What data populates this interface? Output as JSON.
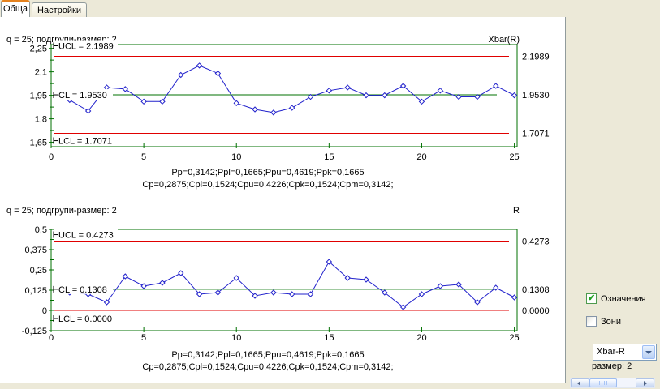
{
  "tabs": [
    {
      "label": "Обща",
      "active": true
    },
    {
      "label": "Настройки",
      "active": false
    }
  ],
  "colors": {
    "background": "#ECE9D8",
    "panel": "#FFFFFF",
    "plot_border": "#007000",
    "center_line": "#007000",
    "control_limit": "#E00000",
    "series": "#2222CC",
    "tab_accent": "#E5821E",
    "check": "#21A121"
  },
  "controls": {
    "legend_checkbox": {
      "label": "Означения",
      "checked": true
    },
    "zones_checkbox": {
      "label": "Зони",
      "checked": false
    },
    "chart_type_dropdown": {
      "value": "Xbar-R"
    },
    "size_label": "размер: 2"
  },
  "chart_data": [
    {
      "type": "line",
      "name": "xbar-chart",
      "header_left": "q = 25; подгрупи-размер: 2",
      "title": "Xbar(R)",
      "x": [
        1,
        2,
        3,
        4,
        5,
        6,
        7,
        8,
        9,
        10,
        11,
        12,
        13,
        14,
        15,
        16,
        17,
        18,
        19,
        20,
        21,
        22,
        23,
        24,
        25
      ],
      "values": [
        1.92,
        1.85,
        2.0,
        1.99,
        1.91,
        1.91,
        2.08,
        2.14,
        2.09,
        1.9,
        1.86,
        1.84,
        1.87,
        1.94,
        1.98,
        2.0,
        1.95,
        1.95,
        2.01,
        1.91,
        1.98,
        1.94,
        1.94,
        2.01,
        1.95
      ],
      "ucl": 2.1989,
      "cl": 1.953,
      "lcl": 1.7071,
      "ucl_label": "UCL = 2.1989",
      "cl_label": "CL = 1.9530",
      "lcl_label": "LCL = 1.7071",
      "right_labels": [
        "2.1989",
        "1.9530",
        "1.7071"
      ],
      "y_ticks": [
        {
          "v": 2.25,
          "label": "2,25"
        },
        {
          "v": 2.1,
          "label": "2,1"
        },
        {
          "v": 1.95,
          "label": "1,95"
        },
        {
          "v": 1.8,
          "label": "1,8"
        },
        {
          "v": 1.65,
          "label": "1,65"
        }
      ],
      "x_ticks": [
        {
          "v": 0,
          "label": "0"
        },
        {
          "v": 5,
          "label": "5"
        },
        {
          "v": 10,
          "label": "10"
        },
        {
          "v": 15,
          "label": "15"
        },
        {
          "v": 20,
          "label": "20"
        },
        {
          "v": 25,
          "label": "25"
        }
      ],
      "ylim": [
        1.622,
        2.274
      ],
      "xlim": [
        0,
        25.15
      ],
      "label_dy": {
        "ucl": -13,
        "cl": 0,
        "lcl": 9
      },
      "stats_line1": "Pp=0,3142;Ppl=0,1665;Ppu=0,4619;Ppk=0,1665",
      "stats_line2": "Cp=0,2875;Cpl=0,1524;Cpu=0,4226;Cpk=0,1524;Cpm=0,3142;"
    },
    {
      "type": "line",
      "name": "r-chart",
      "header_left": "q = 25; подгрупи-размер: 2",
      "title": "R",
      "x": [
        1,
        2,
        3,
        4,
        5,
        6,
        7,
        8,
        9,
        10,
        11,
        12,
        13,
        14,
        15,
        16,
        17,
        18,
        19,
        20,
        21,
        22,
        23,
        24,
        25
      ],
      "values": [
        0.11,
        0.1,
        0.05,
        0.21,
        0.15,
        0.17,
        0.23,
        0.1,
        0.11,
        0.2,
        0.09,
        0.11,
        0.1,
        0.1,
        0.3,
        0.2,
        0.19,
        0.11,
        0.02,
        0.1,
        0.15,
        0.16,
        0.05,
        0.14,
        0.08
      ],
      "ucl": 0.4273,
      "cl": 0.1308,
      "lcl": 0.0,
      "ucl_label": "UCL = 0.4273",
      "cl_label": "CL = 0.1308",
      "lcl_label": "LCL = 0.0000",
      "right_labels": [
        "0.4273",
        "0.1308",
        "0.0000"
      ],
      "y_ticks": [
        {
          "v": 0.5,
          "label": "0,5"
        },
        {
          "v": 0.375,
          "label": "0,375"
        },
        {
          "v": 0.25,
          "label": "0,25"
        },
        {
          "v": 0.125,
          "label": "0,125"
        },
        {
          "v": 0,
          "label": "0"
        },
        {
          "v": -0.125,
          "label": "-0,125"
        }
      ],
      "x_ticks": [
        {
          "v": 0,
          "label": "0"
        },
        {
          "v": 5,
          "label": "5"
        },
        {
          "v": 10,
          "label": "10"
        },
        {
          "v": 15,
          "label": "15"
        },
        {
          "v": 20,
          "label": "20"
        },
        {
          "v": 25,
          "label": "25"
        }
      ],
      "ylim": [
        -0.125,
        0.5
      ],
      "xlim": [
        0,
        25.15
      ],
      "label_dy": {
        "ucl": -8,
        "cl": 0,
        "lcl": 10
      },
      "stats_line1": "Pp=0,3142;Ppl=0,1665;Ppu=0,4619;Ppk=0,1665",
      "stats_line2": "Cp=0,2875;Cpl=0,1524;Cpu=0,4226;Cpk=0,1524;Cpm=0,3142;"
    }
  ]
}
